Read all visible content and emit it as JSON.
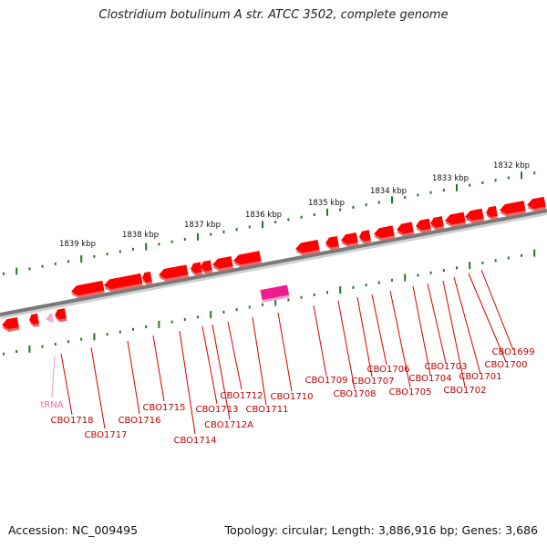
{
  "title": "Clostridium botulinum A str. ATCC 3502, complete genome",
  "footer": {
    "accession": "Accession: NC_009495",
    "summary": "Topology: circular; Length: 3,886,916 bp; Genes: 3,686"
  },
  "colors": {
    "backbone": "#7a7a7a",
    "gene_fill": "#ff0000",
    "gene_shadow": "#e86a6a",
    "rrna_fill": "#ee1c8c",
    "trna_fill": "#f7a8cf",
    "tick": "#1e7a1e",
    "label_line": "#d40000",
    "trna_line": "#f4a0c6"
  },
  "kbp_ticks": [
    "1832 kbp",
    "1833 kbp",
    "1834 kbp",
    "1835 kbp",
    "1836 kbp",
    "1837 kbp",
    "1838 kbp",
    "1839 kbp"
  ],
  "gene_labels": [
    "CBO1699",
    "CBO1700",
    "CBO1701",
    "CBO1702",
    "CBO1703",
    "CBO1704",
    "CBO1705",
    "CBO1706",
    "CBO1707",
    "CBO1708",
    "CBO1709",
    "CBO1710",
    "CBO1711",
    "CBO1712",
    "CBO1712A",
    "CBO1713",
    "CBO1714",
    "CBO1715",
    "CBO1716",
    "CBO1717",
    "CBO1718"
  ],
  "trna_label": "tRNA"
}
